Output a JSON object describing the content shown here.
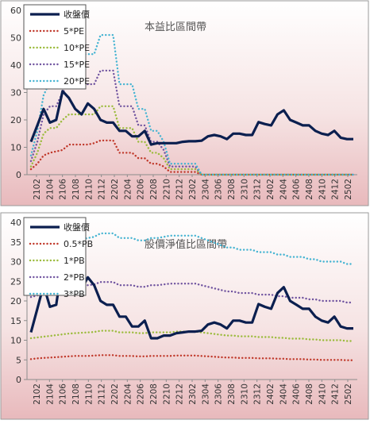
{
  "chart_data": [
    {
      "type": "line",
      "title": "本益比區間帶",
      "ylim": [
        0,
        60
      ],
      "yticks": [
        0,
        10,
        20,
        30,
        40,
        50,
        60
      ],
      "x_tick_labels": [
        "2102",
        "2104",
        "2106",
        "2108",
        "2110",
        "2112",
        "2202",
        "2204",
        "2206",
        "2208",
        "2210",
        "2212",
        "2302",
        "2304",
        "2306",
        "2308",
        "2310",
        "2312",
        "2402",
        "2404",
        "2406",
        "2408",
        "2410",
        "2412",
        "2502"
      ],
      "legend": "top-left",
      "grid": false,
      "series": [
        {
          "name": "收盤價",
          "color": "#0b1f4f",
          "style": "solid",
          "width": 3.2,
          "values": [
            12,
            18,
            24,
            19,
            20,
            30.5,
            28,
            24,
            22,
            26,
            24,
            20,
            19,
            19,
            16,
            16,
            14,
            14,
            16,
            11,
            11.5,
            11.5,
            11.5,
            11.5,
            12,
            12.2,
            12.2,
            12.4,
            14,
            14.5,
            14,
            13,
            15,
            15,
            14.5,
            14.5,
            19.2,
            18.5,
            18,
            22,
            23.5,
            20,
            19,
            18,
            18,
            16,
            15,
            14.5,
            16,
            13.5,
            13,
            13
          ]
        },
        {
          "name": "5*PE",
          "color": "#c0392b",
          "style": "dot",
          "width": 2.4,
          "values": [
            2,
            4,
            7,
            8,
            8.5,
            9,
            11,
            11,
            11,
            11,
            11.5,
            12.5,
            12.5,
            12.5,
            8,
            8,
            8,
            6,
            6,
            4,
            4,
            3,
            1,
            1,
            1,
            1,
            1,
            0,
            0,
            0,
            0,
            0,
            0,
            0,
            0,
            0,
            0,
            0,
            0,
            0,
            0,
            0,
            0,
            0,
            0,
            0,
            0,
            0,
            0,
            0,
            0,
            0
          ]
        },
        {
          "name": "10*PE",
          "color": "#9bbb3c",
          "style": "dot",
          "width": 2.4,
          "values": [
            3,
            8,
            15,
            17,
            17,
            20,
            22,
            22,
            22,
            22,
            22,
            25,
            25,
            25,
            17,
            17,
            17,
            12,
            12,
            8,
            8,
            6,
            2,
            2,
            2,
            2,
            2,
            0,
            0,
            0,
            0,
            0,
            0,
            0,
            0,
            0,
            0,
            0,
            0,
            0,
            0,
            0,
            0,
            0,
            0,
            0,
            0,
            0,
            0,
            0,
            0,
            0
          ]
        },
        {
          "name": "15*PE",
          "color": "#7155a0",
          "style": "dot",
          "width": 2.4,
          "values": [
            5,
            12,
            22,
            25,
            25,
            30,
            33,
            33,
            33,
            33,
            33,
            38,
            38,
            38,
            25,
            25,
            25,
            18,
            18,
            12,
            12,
            9,
            3,
            3,
            3,
            3,
            3,
            0,
            0,
            0,
            0,
            0,
            0,
            0,
            0,
            0,
            0,
            0,
            0,
            0,
            0,
            0,
            0,
            0,
            0,
            0,
            0,
            0,
            0,
            0,
            0,
            0
          ]
        },
        {
          "name": "20*PE",
          "color": "#46b4d2",
          "style": "dot",
          "width": 2.4,
          "values": [
            7,
            16,
            29,
            34,
            34,
            40,
            44,
            44,
            44,
            44,
            44,
            51,
            51,
            51,
            33,
            33,
            33,
            24,
            24,
            16,
            16,
            12,
            4,
            4,
            4,
            4,
            4,
            0,
            0,
            0,
            0,
            0,
            0,
            0,
            0,
            0,
            0,
            0,
            0,
            0,
            0,
            0,
            0,
            0,
            0,
            0,
            0,
            0,
            0,
            0,
            0,
            0
          ]
        }
      ]
    },
    {
      "type": "line",
      "title": "股價淨值比區間帶",
      "ylim": [
        0,
        40
      ],
      "yticks": [
        0,
        5,
        10,
        15,
        20,
        25,
        30,
        35,
        40
      ],
      "x_tick_labels": [
        "2102",
        "2104",
        "2106",
        "2108",
        "2110",
        "2112",
        "2202",
        "2204",
        "2206",
        "2208",
        "2210",
        "2212",
        "2302",
        "2304",
        "2306",
        "2308",
        "2310",
        "2312",
        "2402",
        "2404",
        "2406",
        "2408",
        "2410",
        "2412",
        "2502"
      ],
      "legend": "top-left",
      "grid": false,
      "series": [
        {
          "name": "收盤價",
          "color": "#0b1f4f",
          "style": "solid",
          "width": 3.2,
          "values": [
            12,
            18,
            24,
            18.5,
            19,
            30,
            28,
            23,
            23,
            26,
            24,
            20,
            19,
            19,
            16,
            16,
            13.5,
            13.5,
            15,
            10.5,
            10.5,
            11.2,
            11.2,
            11.8,
            12,
            12.2,
            12.2,
            12.4,
            14,
            14.5,
            14,
            13,
            15,
            15,
            14.5,
            14.5,
            19.2,
            18.5,
            18,
            22,
            23.5,
            20,
            19,
            18,
            18,
            16,
            15,
            14.5,
            16,
            13.5,
            13,
            13
          ]
        },
        {
          "name": "0.5*PB",
          "color": "#c0392b",
          "style": "dot",
          "width": 2.4,
          "values": [
            5.2,
            5.4,
            5.5,
            5.6,
            5.7,
            5.8,
            5.9,
            6,
            6,
            6,
            6.1,
            6.2,
            6.2,
            6.2,
            6,
            6,
            6,
            5.9,
            5.9,
            6,
            6,
            6,
            6,
            6.1,
            6.1,
            6.1,
            6.1,
            6,
            5.9,
            5.8,
            5.7,
            5.6,
            5.6,
            5.5,
            5.5,
            5.5,
            5.4,
            5.4,
            5.4,
            5.3,
            5.3,
            5.2,
            5.2,
            5.2,
            5.1,
            5.1,
            5,
            5,
            5,
            5,
            4.9,
            4.9
          ]
        },
        {
          "name": "1*PB",
          "color": "#9bbb3c",
          "style": "dot",
          "width": 2.4,
          "values": [
            10.5,
            10.7,
            10.9,
            11.1,
            11.3,
            11.5,
            11.7,
            11.8,
            11.9,
            12,
            12.1,
            12.4,
            12.4,
            12.4,
            12,
            12,
            12,
            11.8,
            11.8,
            12,
            12,
            12,
            12,
            12.2,
            12.2,
            12.2,
            12.2,
            12,
            11.8,
            11.6,
            11.4,
            11.2,
            11.2,
            11,
            11,
            11,
            10.8,
            10.8,
            10.8,
            10.6,
            10.6,
            10.4,
            10.4,
            10.4,
            10.2,
            10.2,
            10,
            10,
            10,
            10,
            9.8,
            9.8
          ]
        },
        {
          "name": "2*PB",
          "color": "#7155a0",
          "style": "dot",
          "width": 2.4,
          "values": [
            21,
            21.4,
            21.8,
            22.2,
            22.6,
            23,
            23.4,
            23.6,
            23.8,
            24,
            24.2,
            24.8,
            24.8,
            24.8,
            24,
            24,
            24,
            23.6,
            23.6,
            24,
            24,
            24.2,
            24.4,
            24.4,
            24.4,
            24.4,
            24.4,
            24,
            23.6,
            23.2,
            22.8,
            22.4,
            22.4,
            22,
            22,
            22,
            21.6,
            21.6,
            21.6,
            21.2,
            21.2,
            20.8,
            20.8,
            20.8,
            20.4,
            20.4,
            20,
            20,
            20,
            20,
            19.6,
            19.6
          ]
        },
        {
          "name": "3*PB",
          "color": "#46b4d2",
          "style": "dot",
          "width": 2.4,
          "values": [
            31.5,
            32.1,
            32.7,
            33.3,
            33.9,
            34.5,
            35.1,
            35.4,
            35.7,
            36,
            36.3,
            37.2,
            37.2,
            37.2,
            36,
            36,
            36,
            35.4,
            35.4,
            36,
            36,
            36.3,
            36.6,
            36.6,
            36.6,
            36.6,
            36.6,
            36,
            35.4,
            34.8,
            34.2,
            33.6,
            33.6,
            33,
            33,
            33,
            32.4,
            32.4,
            32.4,
            31.8,
            31.8,
            31.2,
            31.2,
            31.2,
            30.6,
            30.6,
            30,
            30,
            30,
            30,
            29.4,
            29.4
          ]
        }
      ]
    }
  ]
}
